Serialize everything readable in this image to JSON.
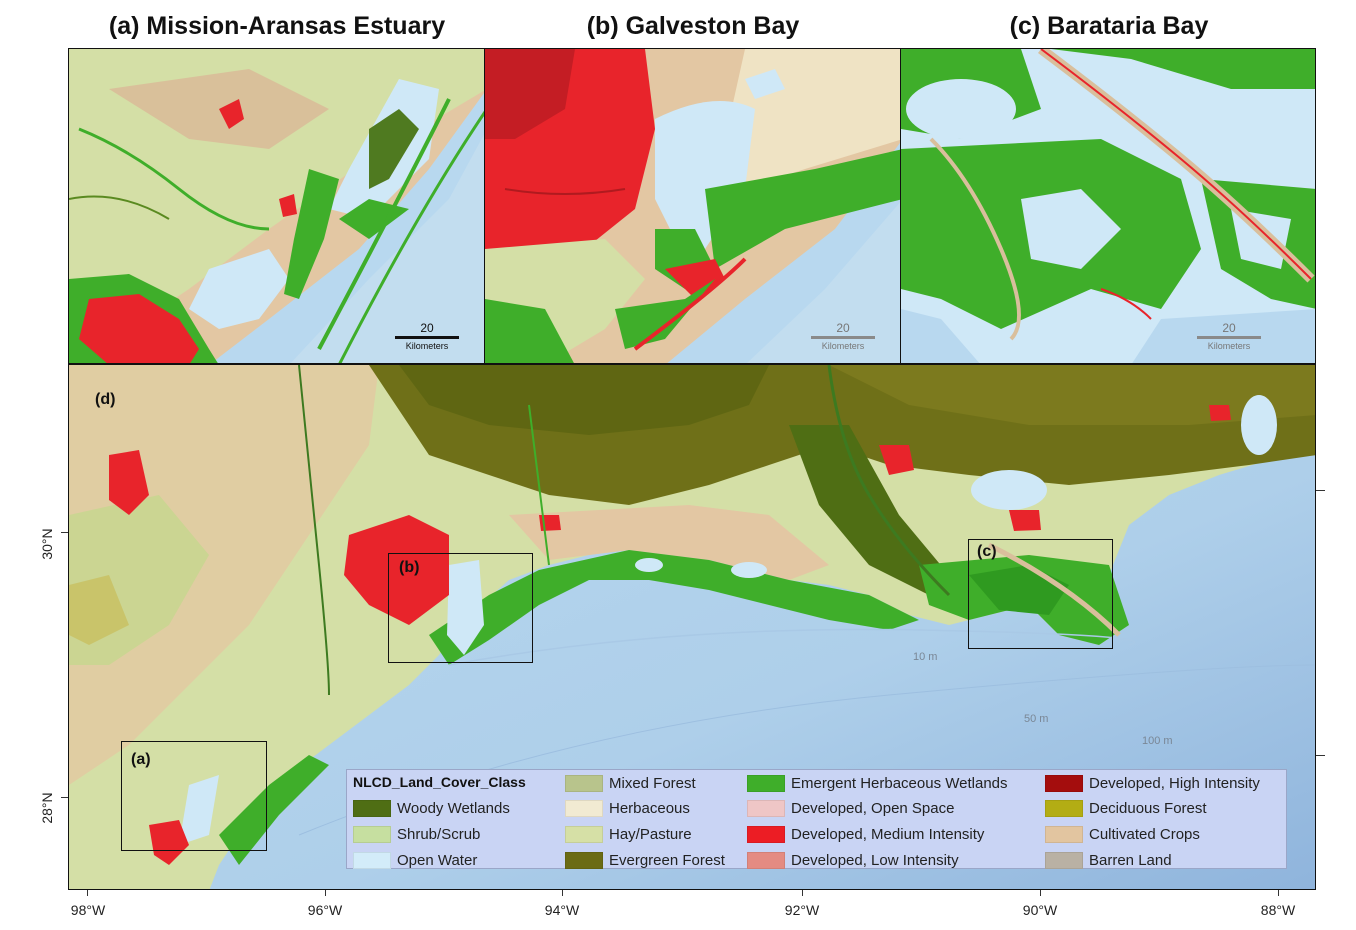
{
  "titles": {
    "a": "(a) Mission-Aransas Estuary",
    "b": "(b) Galveston Bay",
    "c": "(c) Barataria Bay"
  },
  "scalebars": {
    "a": {
      "value": "20",
      "unit": "Kilometers"
    },
    "b": {
      "value": "20",
      "unit": "Kilometers"
    },
    "c": {
      "value": "20",
      "unit": "Kilometers"
    }
  },
  "main_map": {
    "panel_label": "(d)",
    "extent_labels": {
      "a": "(a)",
      "b": "(b)",
      "c": "(c)"
    },
    "depth_contours": [
      "10 m",
      "50 m",
      "100 m"
    ],
    "lon_ticks": [
      "98°W",
      "96°W",
      "94°W",
      "92°W",
      "90°W",
      "88°W"
    ],
    "lat_ticks": [
      "30°N",
      "28°N"
    ]
  },
  "legend": {
    "title": "NLCD_Land_Cover_Class",
    "items": [
      {
        "label": "Woody Wetlands",
        "color": "#4f6e14"
      },
      {
        "label": "Shrub/Scrub",
        "color": "#c6dfa0"
      },
      {
        "label": "Open Water",
        "color": "#d3ecf9"
      },
      {
        "label": "Mixed Forest",
        "color": "#b8c48c"
      },
      {
        "label": "Herbaceous",
        "color": "#f1ead2"
      },
      {
        "label": "Hay/Pasture",
        "color": "#d6e0a6"
      },
      {
        "label": "Evergreen Forest",
        "color": "#6b6b14"
      },
      {
        "label": "Emergent Herbaceous Wetlands",
        "color": "#3fae2a"
      },
      {
        "label": "Developed, Open Space",
        "color": "#efc6c6"
      },
      {
        "label": "Developed, Medium Intensity",
        "color": "#ec1d24"
      },
      {
        "label": "Developed, Low Intensity",
        "color": "#e48b82"
      },
      {
        "label": "Developed, High Intensity",
        "color": "#a40d0d"
      },
      {
        "label": "Deciduous Forest",
        "color": "#b3ad14"
      },
      {
        "label": "Cultivated Crops",
        "color": "#e2c5a0"
      },
      {
        "label": "Barren Land",
        "color": "#b9b1a4"
      }
    ]
  },
  "colors": {
    "gulf": "#b8d8ef",
    "gulf_deep": "#8fb4dc",
    "water": "#cfe8f7",
    "crops": "#e3c7a3",
    "pasture": "#d4dfa6",
    "forest": "#6f7018",
    "wetland": "#3fae2a",
    "developed": "#e8242b"
  }
}
